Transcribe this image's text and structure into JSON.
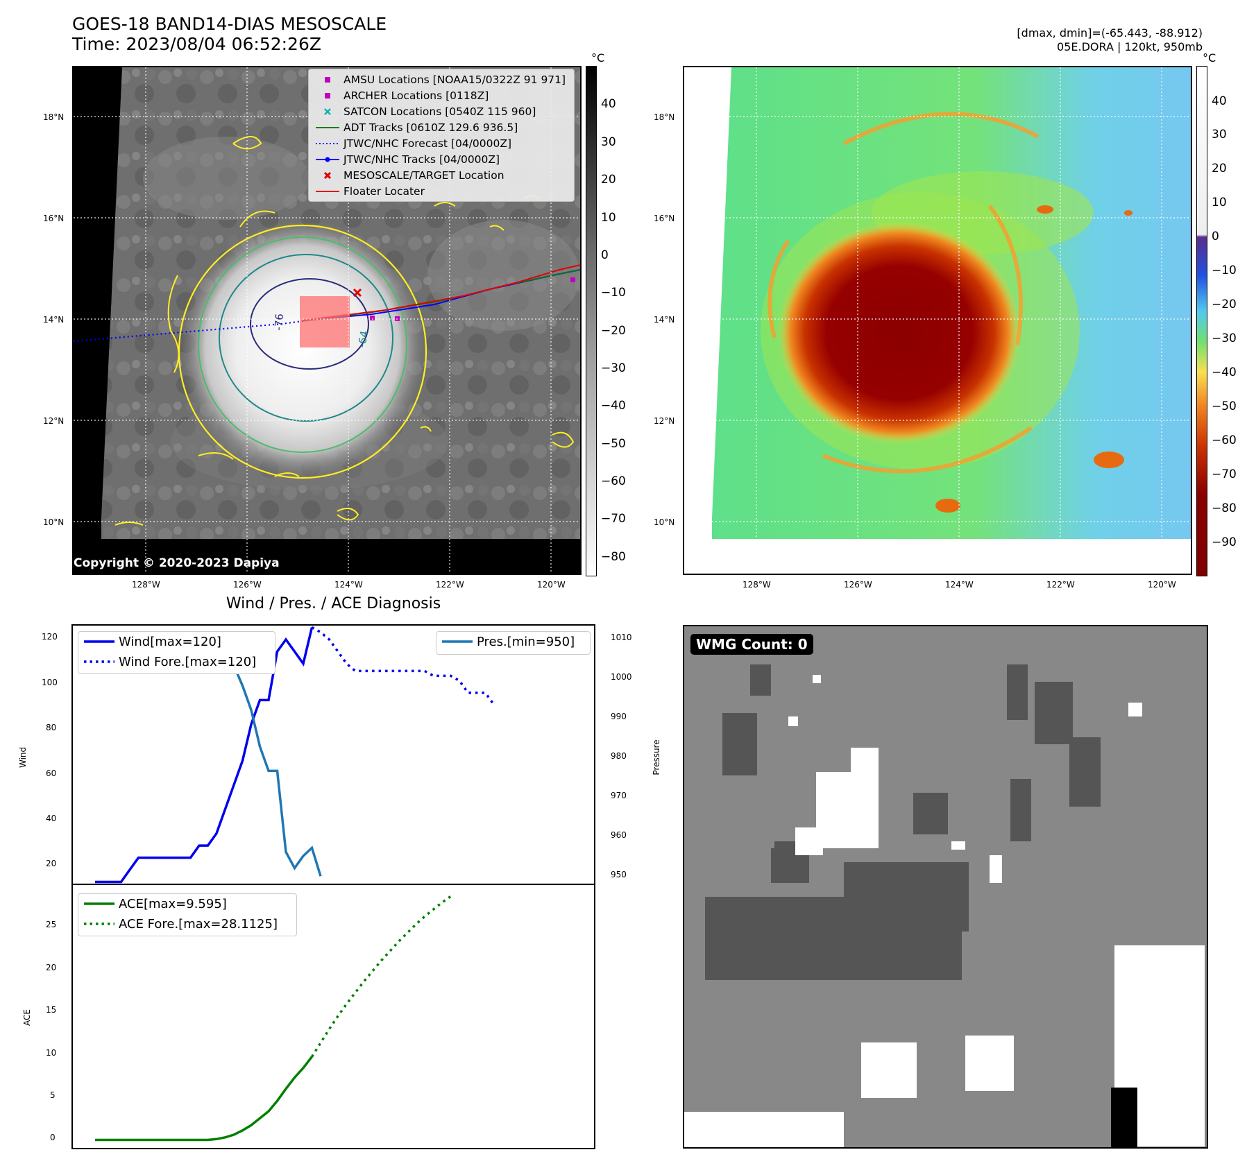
{
  "header": {
    "title_line1": "GOES-18 BAND14-DIAS MESOSCALE",
    "title_line2": "Time: 2023/08/04 06:52:26Z",
    "info_line1": "[dmax, dmin]=(-65.443, -88.912)",
    "info_line2": "05E.DORA | 120kt, 950mb"
  },
  "map_axes": {
    "lat_labels": [
      "18°N",
      "16°N",
      "14°N",
      "12°N",
      "10°N"
    ],
    "lon_labels": [
      "128°W",
      "126°W",
      "124°W",
      "122°W",
      "120°W"
    ]
  },
  "ir_panel": {
    "colorbar_unit": "°C",
    "colorbar_ticks": [
      "40",
      "30",
      "20",
      "10",
      "0",
      "−10",
      "−20",
      "−30",
      "−40",
      "−50",
      "−60",
      "−70",
      "−80"
    ],
    "copyright": "Copyright © 2020-2023 Dapiya",
    "contour_labels": [
      "-76",
      "-64"
    ],
    "legend": [
      {
        "label": "AMSU Locations [NOAA15/0322Z 91 971]",
        "marker": "square",
        "color": "#c000c0"
      },
      {
        "label": "ARCHER Locations [0118Z]",
        "marker": "square",
        "color": "#c000c0"
      },
      {
        "label": "SATCON Locations [0540Z 115 960]",
        "marker": "x",
        "color": "#10b0b0"
      },
      {
        "label": "ADT Tracks [0610Z 129.6 936.5]",
        "marker": "line",
        "color": "#008000"
      },
      {
        "label": "JTWC/NHC Forecast [04/0000Z]",
        "marker": "dotted",
        "color": "#0000ff"
      },
      {
        "label": "JTWC/NHC Tracks [04/0000Z]",
        "marker": "line-dot",
        "color": "#0000ff"
      },
      {
        "label": "MESOSCALE/TARGET Location",
        "marker": "x",
        "color": "#e00000"
      },
      {
        "label": "Floater Locater",
        "marker": "line",
        "color": "#e00000"
      }
    ]
  },
  "color_panel": {
    "colorbar_unit": "°C",
    "colorbar_ticks": [
      "40",
      "30",
      "20",
      "10",
      "0",
      "−10",
      "−20",
      "−30",
      "−40",
      "−50",
      "−60",
      "−70",
      "−80",
      "−90"
    ]
  },
  "diagnosis": {
    "title": "Wind / Pres. / ACE Diagnosis",
    "wind_ylabel": "Wind",
    "pres_ylabel": "Pressure",
    "ace_ylabel": "ACE",
    "wind_ticks": [
      "120",
      "100",
      "80",
      "60",
      "40",
      "20"
    ],
    "pres_ticks": [
      "1010",
      "1000",
      "990",
      "980",
      "970",
      "960",
      "950"
    ],
    "ace_ticks": [
      "25",
      "20",
      "15",
      "10",
      "5",
      "0"
    ],
    "legend_wind": "Wind[max=120]",
    "legend_wind_fore": "Wind Fore.[max=120]",
    "legend_pres": "Pres.[min=950]",
    "legend_ace": "ACE[max=9.595]",
    "legend_ace_fore": "ACE Fore.[max=28.1125]",
    "colors": {
      "wind": "#0000ee",
      "pres": "#1f77b4",
      "ace": "#008000"
    }
  },
  "wmg_panel": {
    "count_label": "WMG Count: 0"
  },
  "chart_data": [
    {
      "type": "line",
      "title": "Wind / Pres. / ACE Diagnosis",
      "ylabel": "Wind",
      "ylim": [
        14,
        121
      ],
      "series": [
        {
          "name": "Wind[max=120]",
          "values": [
            15,
            15,
            15,
            15,
            20,
            25,
            25,
            25,
            25,
            25,
            25,
            25,
            30,
            30,
            35,
            45,
            55,
            65,
            80,
            90,
            90,
            110,
            115,
            110,
            105,
            120
          ]
        },
        {
          "name": "Wind Fore.[max=120]",
          "values": [
            120,
            118,
            115,
            110,
            105,
            102,
            102,
            102,
            102,
            102,
            102,
            102,
            102,
            102,
            100,
            100,
            100,
            98,
            93,
            93,
            93,
            88
          ]
        }
      ]
    },
    {
      "type": "line",
      "ylabel": "Pressure",
      "ylim": [
        948,
        1012
      ],
      "series": [
        {
          "name": "Pres.[min=950]",
          "values": [
            1010,
            1010,
            1010,
            1010,
            1010,
            1010,
            1010,
            1009,
            1009,
            1009,
            1009,
            1009,
            1009,
            1009,
            1008,
            1006,
            1002,
            997,
            991,
            982,
            976,
            976,
            956,
            952,
            955,
            957,
            950
          ]
        }
      ]
    },
    {
      "type": "line",
      "ylabel": "ACE",
      "ylim": [
        -1,
        29.5
      ],
      "series": [
        {
          "name": "ACE[max=9.595]",
          "values": [
            0,
            0,
            0,
            0,
            0,
            0,
            0,
            0,
            0,
            0,
            0,
            0,
            0,
            0,
            0.1,
            0.3,
            0.6,
            1.1,
            1.7,
            2.5,
            3.3,
            4.5,
            5.9,
            7.2,
            8.3,
            9.595
          ]
        },
        {
          "name": "ACE Fore.[max=28.1125]",
          "values": [
            9.595,
            11.2,
            12.8,
            14.3,
            15.7,
            17.0,
            18.3,
            19.5,
            20.7,
            21.8,
            22.9,
            23.9,
            24.9,
            25.8,
            26.6,
            27.4,
            28.1125
          ]
        }
      ]
    }
  ]
}
